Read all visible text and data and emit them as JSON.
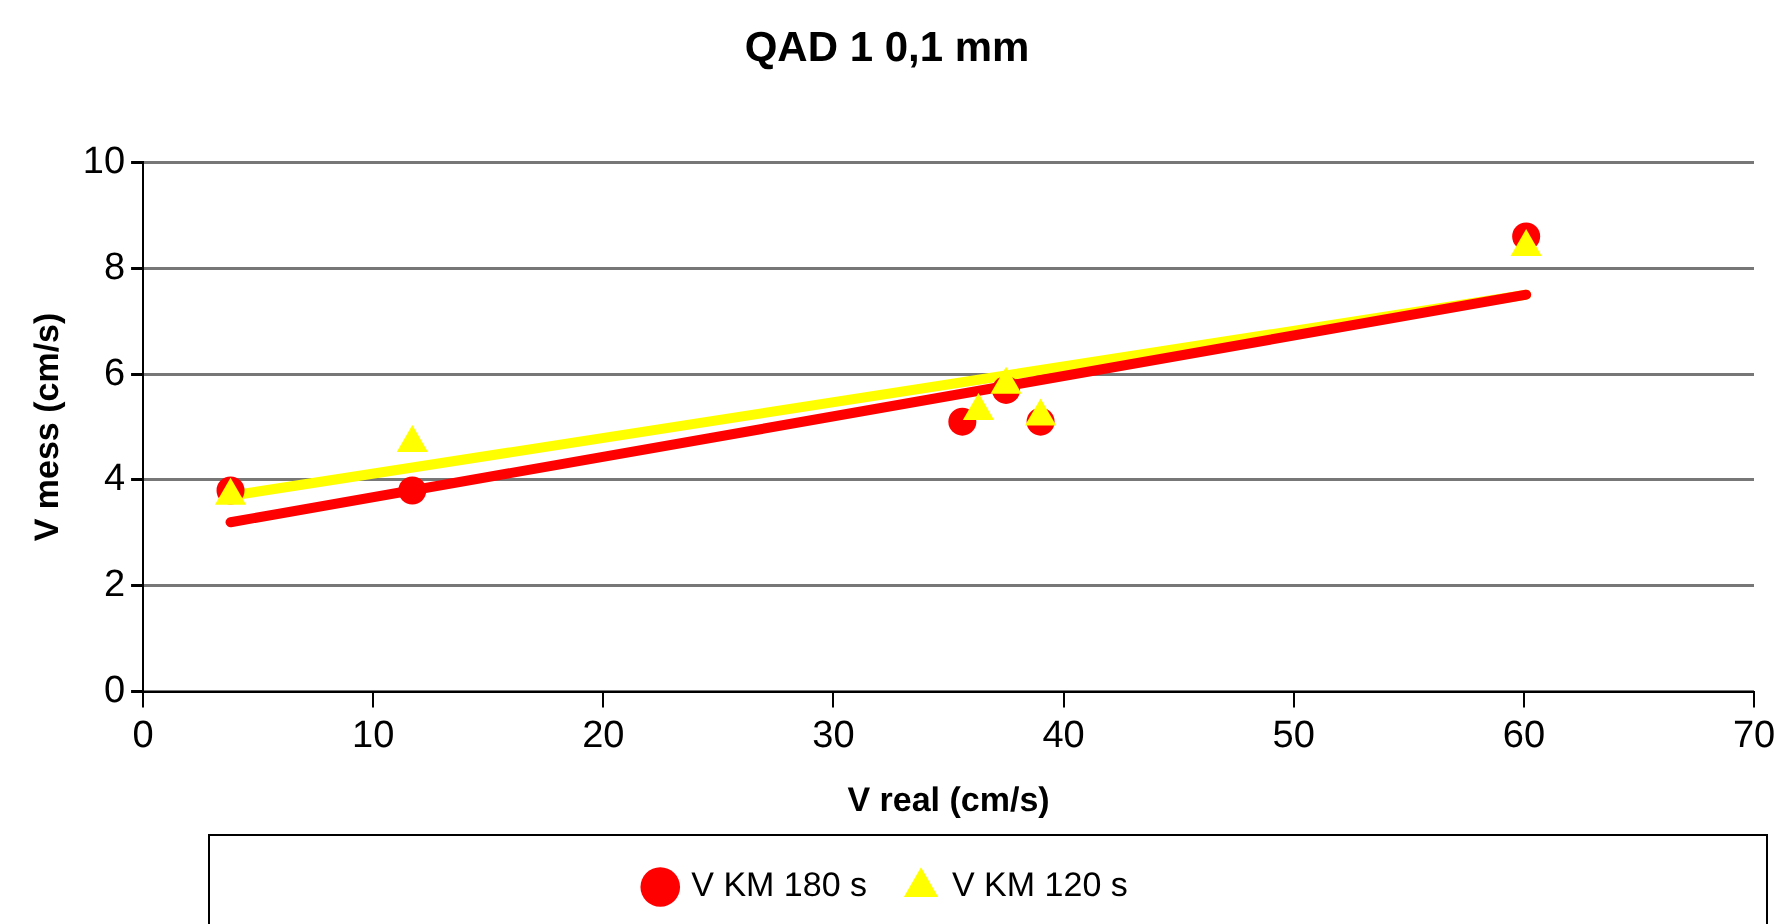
{
  "chart_data": {
    "type": "scatter",
    "title": "QAD 1 0,1 mm",
    "xlabel": "V real (cm/s)",
    "ylabel": "V mess (cm/s)",
    "xlim": [
      0,
      70
    ],
    "xticks": [
      0,
      10,
      20,
      30,
      40,
      50,
      60,
      70
    ],
    "ylim": [
      0,
      10
    ],
    "yticks": [
      0,
      2,
      4,
      6,
      8,
      10
    ],
    "grid": "y",
    "legend": "bottom",
    "series": [
      {
        "name": "V KM 180 s",
        "color": "#ff0000",
        "marker": "circle",
        "x": [
          3.8,
          11.7,
          35.6,
          37.5,
          39.0,
          60.1
        ],
        "values": [
          3.8,
          3.8,
          5.1,
          5.7,
          5.1,
          8.6
        ]
      },
      {
        "name": "V KM 120 s",
        "color": "#ffff00",
        "marker": "triangle",
        "x": [
          3.8,
          11.7,
          36.3,
          37.5,
          39.0,
          60.1
        ],
        "values": [
          3.7,
          4.7,
          5.3,
          5.8,
          5.2,
          8.4
        ]
      },
      {
        "type": "line",
        "color": "#ff0000",
        "x": [
          3.8,
          60.1
        ],
        "values": [
          3.2,
          7.5
        ]
      },
      {
        "type": "line",
        "color": "#ffff00",
        "x": [
          3.8,
          60.1
        ],
        "values": [
          3.7,
          7.5
        ]
      }
    ]
  }
}
